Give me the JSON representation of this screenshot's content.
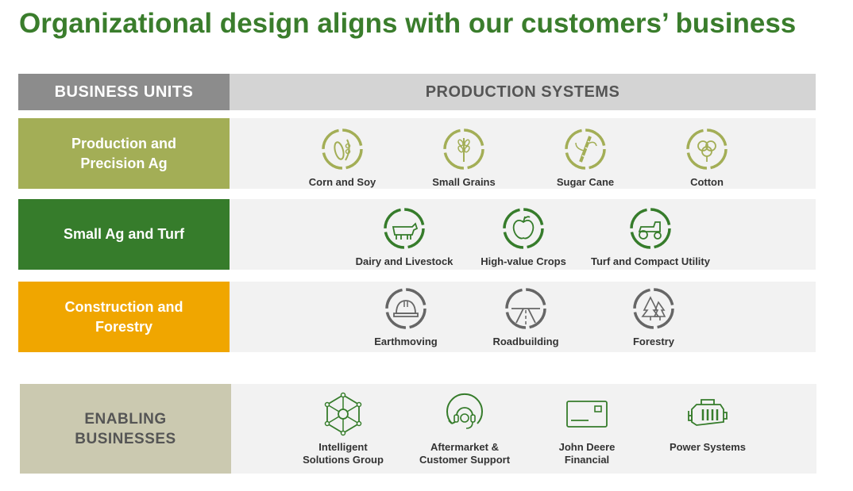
{
  "title": "Organizational design aligns with our customers’ business",
  "headers": {
    "left": "BUSINESS UNITS",
    "right": "PRODUCTION SYSTEMS"
  },
  "rows": [
    {
      "label": "Production and Precision Ag",
      "color": "#a3ae56",
      "items": [
        {
          "label": "Corn and Soy",
          "icon": "corn-soy-icon"
        },
        {
          "label": "Small Grains",
          "icon": "wheat-icon"
        },
        {
          "label": "Sugar Cane",
          "icon": "sugar-cane-icon"
        },
        {
          "label": "Cotton",
          "icon": "cotton-icon"
        }
      ]
    },
    {
      "label": "Small Ag and Turf",
      "color": "#367c2b",
      "items": [
        {
          "label": "Dairy and Livestock",
          "icon": "cow-icon"
        },
        {
          "label": "High-value Crops",
          "icon": "apple-icon"
        },
        {
          "label": "Turf and Compact Utility",
          "icon": "tractor-icon"
        }
      ]
    },
    {
      "label": "Construction and Forestry",
      "color": "#f0a600",
      "items": [
        {
          "label": "Earthmoving",
          "icon": "hardhat-icon"
        },
        {
          "label": "Roadbuilding",
          "icon": "road-icon"
        },
        {
          "label": "Forestry",
          "icon": "trees-icon"
        }
      ]
    }
  ],
  "enabling": {
    "label": "ENABLING BUSINESSES",
    "color": "#cbc9b0",
    "items": [
      {
        "label": "Intelligent Solutions Group",
        "icon": "network-icon"
      },
      {
        "label": "Aftermarket & Customer Support",
        "icon": "headset-icon"
      },
      {
        "label": "John Deere Financial",
        "icon": "credit-card-icon"
      },
      {
        "label": "Power Systems",
        "icon": "engine-icon"
      }
    ]
  }
}
